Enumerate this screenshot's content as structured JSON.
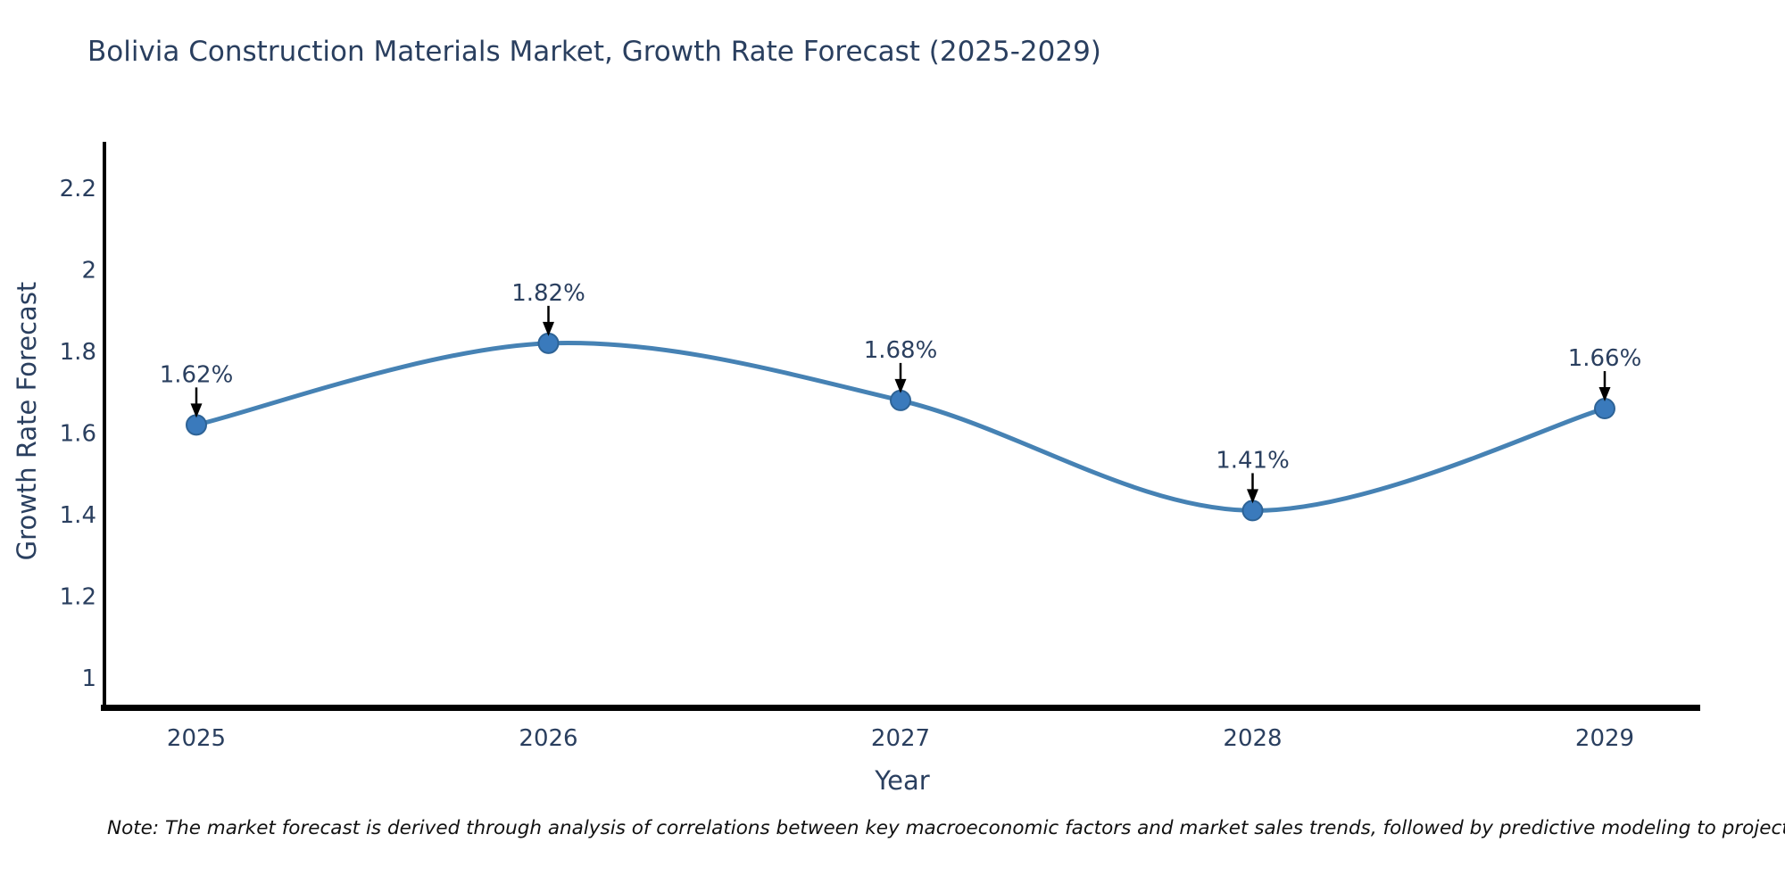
{
  "title": "Bolivia Construction Materials Market, Growth Rate Forecast (2025-2029)",
  "note": "Note: The market forecast is derived through analysis of correlations between key macroeconomic factors and market sales trends, followed by predictive modeling to project future sales",
  "chart_data": {
    "type": "line",
    "title": "Bolivia Construction Materials Market, Growth Rate Forecast (2025-2029)",
    "xlabel": "Year",
    "ylabel": "Growth Rate Forecast",
    "categories": [
      "2025",
      "2026",
      "2027",
      "2028",
      "2029"
    ],
    "series": [
      {
        "name": "Growth Rate Forecast",
        "values": [
          1.62,
          1.82,
          1.68,
          1.41,
          1.66
        ],
        "point_labels": [
          "1.62%",
          "1.82%",
          "1.68%",
          "1.41%",
          "1.66%"
        ]
      }
    ],
    "line_shape": "spline",
    "markers": true,
    "annotations_with_arrows": true,
    "yticks": [
      1,
      1.2,
      1.4,
      1.6,
      1.8,
      2,
      2.2
    ],
    "ytick_labels": [
      "1",
      "1.2",
      "1.4",
      "1.6",
      "1.8",
      "2",
      "2.2"
    ],
    "ylim": [
      0.93,
      2.31
    ],
    "grid": false,
    "legend": "none",
    "colors": {
      "line": "#4682b4",
      "marker_fill": "#3a7abc",
      "marker_edge": "#2e6396",
      "axis_line": "#000000",
      "text": "#2a3f5f",
      "annotation_arrow": "#000000"
    }
  }
}
